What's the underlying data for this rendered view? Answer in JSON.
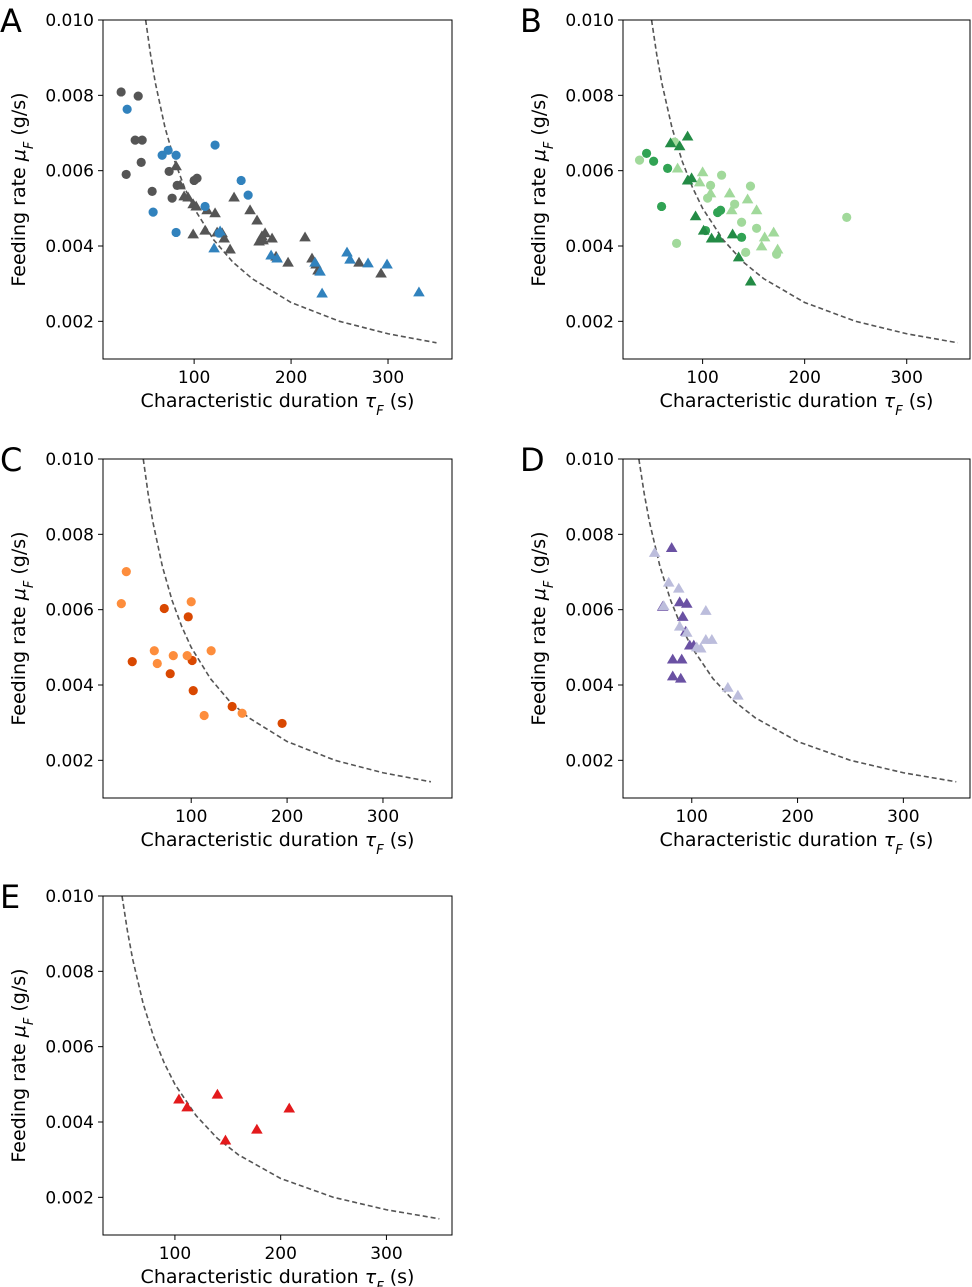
{
  "chart_data": [
    {
      "type": "scatter",
      "panel": "A",
      "xlabel": [
        "Characteristic duration ",
        "τ",
        "F",
        " (s)"
      ],
      "ylabel": [
        "Feeding rate ",
        "μ",
        "F",
        " (g/s)"
      ],
      "xlim": [
        6,
        366
      ],
      "ylim": [
        0.001,
        0.01
      ],
      "xticks": [
        100,
        200,
        300
      ],
      "yticks": [
        0.002,
        0.004,
        0.006,
        0.008,
        {
          "value": 0.01,
          "label": "0.010"
        }
      ],
      "series": [
        {
          "color": "#555555",
          "marker": "line",
          "dashed": true,
          "x": [
            50,
            55,
            60,
            70,
            80,
            90,
            100,
            120,
            140,
            160,
            200,
            250,
            300,
            350
          ],
          "values": [
            0.01,
            0.00909,
            0.00833,
            0.00714,
            0.00625,
            0.00556,
            0.005,
            0.00417,
            0.00357,
            0.00313,
            0.0025,
            0.002,
            0.00167,
            0.00143
          ]
        },
        {
          "color": "#555555",
          "marker": "circle",
          "x": [
            24.7,
            42.3,
            39.2,
            46.4,
            45.4,
            29.9,
            56.7,
            74.2,
            77.3,
            82.5,
            100,
            103
          ],
          "values": [
            0.00809,
            0.00798,
            0.00681,
            0.00681,
            0.00622,
            0.0059,
            0.00545,
            0.00598,
            0.00527,
            0.00561,
            0.00574,
            0.0058
          ]
        },
        {
          "color": "#555555",
          "marker": "triangle",
          "x": [
            81.4,
            85.6,
            89.7,
            93.8,
            99,
            102.1,
            99,
            111.3,
            113.4,
            121.6,
            123.7,
            128.9,
            131,
            137.1,
            141.2,
            157.7,
            164.9,
            170,
            167,
            171.1,
            173.2,
            180.4,
            184.5,
            196.9,
            214.4,
            221.6,
            225.8,
            227.8,
            270.1,
            292.8
          ],
          "values": [
            0.00612,
            0.00561,
            0.00532,
            0.00529,
            0.00511,
            0.00505,
            0.00431,
            0.00441,
            0.00495,
            0.00487,
            0.00436,
            0.00434,
            0.0042,
            0.00391,
            0.00529,
            0.00495,
            0.00468,
            0.00426,
            0.00412,
            0.00415,
            0.00434,
            0.0042,
            0.00372,
            0.00356,
            0.00423,
            0.00367,
            0.00351,
            0.00335,
            0.00356,
            0.00327
          ]
        },
        {
          "color": "#3182bd",
          "marker": "circle",
          "x": [
            30.9,
            67,
            73.2,
            81.4,
            57.7,
            81.4,
            111.3,
            121.6,
            125.8,
            148.5,
            155.7
          ],
          "values": [
            0.00763,
            0.00641,
            0.00654,
            0.00641,
            0.0049,
            0.00436,
            0.00505,
            0.00668,
            0.00434,
            0.00574,
            0.00535
          ]
        },
        {
          "color": "#3182bd",
          "marker": "triangle",
          "x": [
            120.6,
            126.8,
            179.4,
            185.6,
            224.7,
            229.9,
            232,
            257.7,
            260.8,
            279.4,
            299,
            331.9
          ],
          "values": [
            0.00394,
            0.00439,
            0.00375,
            0.00367,
            0.00356,
            0.00332,
            0.00274,
            0.00383,
            0.00364,
            0.00354,
            0.00351,
            0.00277
          ]
        }
      ]
    },
    {
      "type": "scatter",
      "panel": "B",
      "xlabel": [
        "Characteristic duration ",
        "τ",
        "F",
        " (s)"
      ],
      "ylabel": [
        "Feeding rate ",
        "μ",
        "F",
        " (g/s)"
      ],
      "xlim": [
        22,
        362
      ],
      "ylim": [
        0.001,
        0.01
      ],
      "xticks": [
        100,
        200,
        300
      ],
      "yticks": [
        0.002,
        0.004,
        0.006,
        0.008,
        {
          "value": 0.01,
          "label": "0.010"
        }
      ],
      "series": [
        {
          "color": "#555555",
          "marker": "line",
          "dashed": true,
          "x": [
            50,
            55,
            60,
            70,
            80,
            90,
            100,
            120,
            140,
            160,
            200,
            250,
            300,
            350
          ],
          "values": [
            0.01,
            0.00909,
            0.00833,
            0.00714,
            0.00625,
            0.00556,
            0.005,
            0.00417,
            0.00357,
            0.00313,
            0.0025,
            0.002,
            0.00167,
            0.00143
          ]
        },
        {
          "color": "#31a354",
          "marker": "circle",
          "x": [
            45.1,
            52,
            59.8,
            65.7,
            102.9,
            114.7,
            117.6,
            138.2
          ],
          "values": [
            0.00646,
            0.00625,
            0.00505,
            0.00606,
            0.00441,
            0.00489,
            0.00495,
            0.00423
          ]
        },
        {
          "color": "#a1d99b",
          "marker": "circle",
          "x": [
            38.2,
            72.5,
            74.5,
            104.9,
            107.8,
            118.6,
            131.4,
            138.2,
            142.2,
            146.9,
            152.9,
            172.5,
            241.2
          ],
          "values": [
            0.00628,
            0.00676,
            0.00407,
            0.00527,
            0.00561,
            0.00588,
            0.00511,
            0.00463,
            0.00383,
            0.00559,
            0.00447,
            0.00378,
            0.00476
          ]
        },
        {
          "color": "#238b45",
          "marker": "triangle",
          "x": [
            77.5,
            85.3,
            89.2,
            93.1,
            101,
            108.8,
            115.7,
            129.4,
            135.3,
            147.1,
            85.3,
            68.6
          ],
          "values": [
            0.00665,
            0.00691,
            0.0058,
            0.00479,
            0.00441,
            0.0042,
            0.0042,
            0.00431,
            0.0037,
            0.00306,
            0.00574,
            0.00673
          ]
        },
        {
          "color": "#a1d99b",
          "marker": "triangle",
          "x": [
            100,
            107.8,
            126.5,
            128.5,
            144.1,
            152.9,
            157.8,
            160.8,
            169.6,
            173.5,
            75.5,
            97.1
          ],
          "values": [
            0.00596,
            0.0054,
            0.0054,
            0.00495,
            0.00524,
            0.00495,
            0.00399,
            0.00423,
            0.00436,
            0.00391,
            0.00606,
            0.00569
          ]
        }
      ]
    },
    {
      "type": "scatter",
      "panel": "C",
      "xlabel": [
        "Characteristic duration ",
        "τ",
        "F",
        " (s)"
      ],
      "ylabel": [
        "Feeding rate ",
        "μ",
        "F",
        " (g/s)"
      ],
      "xlim": [
        8,
        372
      ],
      "ylim": [
        0.001,
        0.01
      ],
      "xticks": [
        100,
        200,
        300
      ],
      "yticks": [
        0.002,
        0.004,
        0.006,
        0.008,
        {
          "value": 0.01,
          "label": "0.010"
        }
      ],
      "series": [
        {
          "color": "#555555",
          "marker": "line",
          "dashed": true,
          "x": [
            50,
            55,
            60,
            70,
            80,
            90,
            100,
            120,
            140,
            160,
            200,
            250,
            300,
            350
          ],
          "values": [
            0.01,
            0.00909,
            0.00833,
            0.00714,
            0.00625,
            0.00556,
            0.005,
            0.00417,
            0.00357,
            0.00313,
            0.0025,
            0.002,
            0.00167,
            0.00143
          ]
        },
        {
          "color": "#d94801",
          "marker": "circle",
          "x": [
            38.5,
            71.9,
            78.1,
            96.9,
            101,
            102.1,
            142.7,
            194.8
          ],
          "values": [
            0.00462,
            0.00603,
            0.0043,
            0.00581,
            0.00465,
            0.00385,
            0.00343,
            0.00298
          ]
        },
        {
          "color": "#fd8d3c",
          "marker": "circle",
          "x": [
            27.1,
            32.3,
            61.5,
            64.6,
            81.3,
            95.8,
            100,
            120.8,
            113.5,
            153.1
          ],
          "values": [
            0.00616,
            0.00701,
            0.00491,
            0.00457,
            0.00478,
            0.00478,
            0.00621,
            0.00491,
            0.00319,
            0.00325
          ]
        }
      ]
    },
    {
      "type": "scatter",
      "panel": "D",
      "xlabel": [
        "Characteristic duration ",
        "τ",
        "F",
        " (s)"
      ],
      "ylabel": [
        "Feeding rate ",
        "μ",
        "F",
        " (g/s)"
      ],
      "xlim": [
        35,
        363
      ],
      "ylim": [
        0.001,
        0.01
      ],
      "xticks": [
        100,
        200,
        300
      ],
      "yticks": [
        0.002,
        0.004,
        0.006,
        0.008,
        {
          "value": 0.01,
          "label": "0.010"
        }
      ],
      "series": [
        {
          "color": "#555555",
          "marker": "line",
          "dashed": true,
          "x": [
            50,
            55,
            60,
            70,
            80,
            90,
            100,
            120,
            140,
            160,
            200,
            250,
            300,
            350
          ],
          "values": [
            0.01,
            0.00909,
            0.00833,
            0.00714,
            0.00625,
            0.00556,
            0.005,
            0.00417,
            0.00357,
            0.00313,
            0.0025,
            0.002,
            0.00167,
            0.00143
          ]
        },
        {
          "color": "#6a51a3",
          "marker": "triangle",
          "x": [
            81,
            72.5,
            88.6,
            95.3,
            91.5,
            94.3,
            82,
            90.5,
            82,
            89.6,
            98.1,
            101.9
          ],
          "values": [
            0.00764,
            0.00608,
            0.0062,
            0.00616,
            0.00581,
            0.00542,
            0.00468,
            0.00468,
            0.00423,
            0.00417,
            0.00505,
            0.00505
          ]
        },
        {
          "color": "#bcbddc",
          "marker": "triangle",
          "x": [
            64.9,
            73.5,
            78.2,
            87.7,
            88.6,
            104.7,
            108.5,
            113.3,
            113.3,
            119,
            134.1,
            143.6,
            95.3
          ],
          "values": [
            0.00751,
            0.0061,
            0.00672,
            0.00656,
            0.00555,
            0.005,
            0.00497,
            0.0052,
            0.00597,
            0.0052,
            0.00393,
            0.00372,
            0.00539
          ]
        }
      ]
    },
    {
      "type": "scatter",
      "panel": "E",
      "xlabel": [
        "Characteristic duration ",
        "τ",
        "F",
        " (s)"
      ],
      "ylabel": [
        "Feeding rate ",
        "μ",
        "F",
        " (g/s)"
      ],
      "xlim": [
        32,
        362
      ],
      "ylim": [
        0.001,
        0.01
      ],
      "xticks": [
        100,
        200,
        300
      ],
      "yticks": [
        0.002,
        0.004,
        0.006,
        0.008,
        {
          "value": 0.01,
          "label": "0.010"
        }
      ],
      "series": [
        {
          "color": "#555555",
          "marker": "line",
          "dashed": true,
          "x": [
            50,
            55,
            60,
            70,
            80,
            90,
            100,
            120,
            140,
            160,
            200,
            250,
            300,
            350
          ],
          "values": [
            0.01,
            0.00909,
            0.00833,
            0.00714,
            0.00625,
            0.00556,
            0.005,
            0.00417,
            0.00357,
            0.00313,
            0.0025,
            0.002,
            0.00167,
            0.00143
          ]
        },
        {
          "color": "#e31a1c",
          "marker": "triangle",
          "x": [
            103.8,
            111.5,
            140.2,
            147.8,
            177.5,
            208.1
          ],
          "values": [
            0.0046,
            0.00439,
            0.00473,
            0.00351,
            0.0038,
            0.00436
          ]
        }
      ]
    }
  ]
}
